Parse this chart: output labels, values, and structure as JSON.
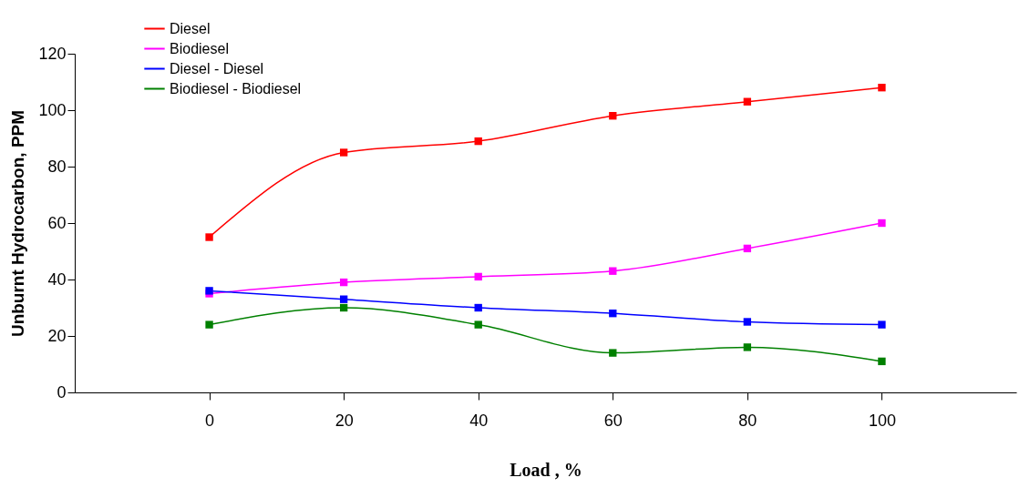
{
  "chart_data": {
    "type": "line",
    "xlabel": "Load , %",
    "ylabel": "Unburnt Hydrocarbon, PPM",
    "x": [
      0,
      20,
      40,
      60,
      80,
      100
    ],
    "series": [
      {
        "name": "Diesel",
        "color": "#ff0000",
        "values": [
          55,
          85,
          89,
          98,
          103,
          108
        ]
      },
      {
        "name": "Biodiesel",
        "color": "#ff00ff",
        "values": [
          35,
          39,
          41,
          43,
          51,
          60
        ]
      },
      {
        "name": "Diesel - Diesel",
        "color": "#0000ff",
        "values": [
          36,
          33,
          30,
          28,
          25,
          24
        ]
      },
      {
        "name": "Biodiesel - Biodiesel",
        "color": "#008000",
        "values": [
          24,
          30,
          24,
          14,
          16,
          11
        ]
      }
    ],
    "xlim": [
      -20,
      120
    ],
    "xticks": [
      0,
      20,
      40,
      60,
      80,
      100
    ],
    "ylim": [
      0,
      120
    ],
    "yticks": [
      0,
      20,
      40,
      60,
      80,
      100,
      120
    ],
    "grid": false,
    "legend": "top left",
    "marker": "square",
    "line_style": "solid"
  }
}
